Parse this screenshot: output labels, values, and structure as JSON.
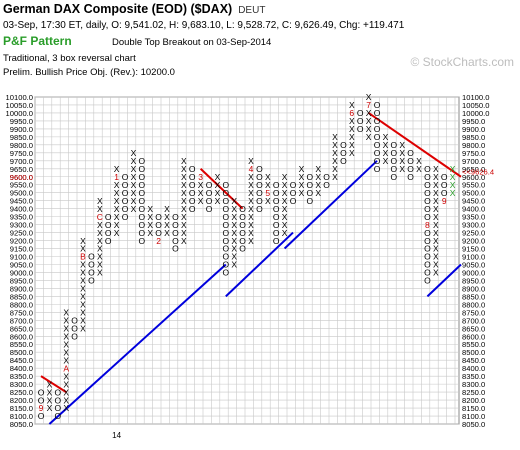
{
  "header": {
    "title": "German DAX Composite (EOD) ($DAX)",
    "exchange": "DEUT",
    "stats": "03-Sep, 17:30 ET, daily, O: 9,541.02, H: 9,683.10, L: 9,528.72, C: 9,626.49, Chg: +119.471",
    "pattern_label": "P&F Pattern",
    "pattern_desc": "Double Top Breakout on 03-Sep-2014",
    "chart_type": "Traditional, 3 box reversal chart",
    "price_objective": "Prelim. Bullish Price Obj. (Rev.): 10200.0"
  },
  "watermark": "© StockCharts.com",
  "chart_data": {
    "type": "point-and-figure",
    "box_size": 50,
    "reversal": 3,
    "ylim": [
      8050,
      10100
    ],
    "grid": true,
    "ticks": [
      "8050.0",
      "8100.0",
      "8150.0",
      "8200.0",
      "8250.0",
      "8300.0",
      "8350.0",
      "8400.0",
      "8450.0",
      "8500.0",
      "8550.0",
      "8600.0",
      "8650.0",
      "8700.0",
      "8750.0",
      "8800.0",
      "8850.0",
      "8900.0",
      "8950.0",
      "9000.0",
      "9050.0",
      "9100.0",
      "9150.0",
      "9200.0",
      "9250.0",
      "9300.0",
      "9350.0",
      "9400.0",
      "9450.0",
      "9500.0",
      "9550.0",
      "9600.0",
      "9650.0",
      "9700.0",
      "9750.0",
      "9800.0",
      "9850.0",
      "9900.0",
      "9950.0",
      "10000.0",
      "10050.0",
      "10100.0"
    ],
    "current_price": 9626.4,
    "current_price_label": "9626.4",
    "current_price_box_label": "9600.0",
    "x_label": "14",
    "columns": [
      {
        "t": "O",
        "lo": 8100,
        "hi": 8250,
        "marks": {
          "8150": "9"
        }
      },
      {
        "t": "X",
        "lo": 8150,
        "hi": 8300
      },
      {
        "t": "O",
        "lo": 8100,
        "hi": 8250
      },
      {
        "t": "X",
        "lo": 8150,
        "hi": 8750,
        "marks": {
          "8400": "A"
        }
      },
      {
        "t": "O",
        "lo": 8600,
        "hi": 8700
      },
      {
        "t": "X",
        "lo": 8650,
        "hi": 9200,
        "marks": {
          "9100": "B"
        }
      },
      {
        "t": "O",
        "lo": 8950,
        "hi": 9100
      },
      {
        "t": "X",
        "lo": 9000,
        "hi": 9450,
        "marks": {
          "9350": "C"
        }
      },
      {
        "t": "O",
        "lo": 9200,
        "hi": 9350
      },
      {
        "t": "X",
        "lo": 9250,
        "hi": 9650,
        "marks": {
          "9600": "1"
        }
      },
      {
        "t": "O",
        "lo": 9350,
        "hi": 9600
      },
      {
        "t": "X",
        "lo": 9400,
        "hi": 9750
      },
      {
        "t": "O",
        "lo": 9200,
        "hi": 9700
      },
      {
        "t": "X",
        "lo": 9250,
        "hi": 9400
      },
      {
        "t": "O",
        "lo": 9200,
        "hi": 9350,
        "marks": {
          "9200": "2"
        }
      },
      {
        "t": "X",
        "lo": 9250,
        "hi": 9400
      },
      {
        "t": "O",
        "lo": 9150,
        "hi": 9350
      },
      {
        "t": "X",
        "lo": 9200,
        "hi": 9700
      },
      {
        "t": "O",
        "lo": 9400,
        "hi": 9650
      },
      {
        "t": "X",
        "lo": 9450,
        "hi": 9600,
        "marks": {
          "9600": "3"
        }
      },
      {
        "t": "O",
        "lo": 9400,
        "hi": 9550
      },
      {
        "t": "X",
        "lo": 9450,
        "hi": 9600
      },
      {
        "t": "O",
        "lo": 9000,
        "hi": 9550
      },
      {
        "t": "X",
        "lo": 9050,
        "hi": 9450
      },
      {
        "t": "O",
        "lo": 9150,
        "hi": 9400
      },
      {
        "t": "X",
        "lo": 9200,
        "hi": 9700,
        "marks": {
          "9650": "4"
        }
      },
      {
        "t": "O",
        "lo": 9400,
        "hi": 9650
      },
      {
        "t": "X",
        "lo": 9450,
        "hi": 9600,
        "marks": {
          "9500": "5"
        }
      },
      {
        "t": "O",
        "lo": 9200,
        "hi": 9550
      },
      {
        "t": "X",
        "lo": 9250,
        "hi": 9600
      },
      {
        "t": "O",
        "lo": 9450,
        "hi": 9550
      },
      {
        "t": "X",
        "lo": 9500,
        "hi": 9650
      },
      {
        "t": "O",
        "lo": 9450,
        "hi": 9600
      },
      {
        "t": "X",
        "lo": 9500,
        "hi": 9650
      },
      {
        "t": "O",
        "lo": 9550,
        "hi": 9600
      },
      {
        "t": "X",
        "lo": 9600,
        "hi": 9850
      },
      {
        "t": "O",
        "lo": 9700,
        "hi": 9800
      },
      {
        "t": "X",
        "lo": 9750,
        "hi": 10050,
        "marks": {
          "10000": "6"
        }
      },
      {
        "t": "O",
        "lo": 9900,
        "hi": 10000
      },
      {
        "t": "X",
        "lo": 9850,
        "hi": 10100,
        "marks": {
          "10050": "7"
        }
      },
      {
        "t": "O",
        "lo": 9650,
        "hi": 10050
      },
      {
        "t": "X",
        "lo": 9700,
        "hi": 9850
      },
      {
        "t": "O",
        "lo": 9600,
        "hi": 9800
      },
      {
        "t": "X",
        "lo": 9650,
        "hi": 9800
      },
      {
        "t": "O",
        "lo": 9600,
        "hi": 9750
      },
      {
        "t": "X",
        "lo": 9650,
        "hi": 9700
      },
      {
        "t": "O",
        "lo": 8950,
        "hi": 9650,
        "marks": {
          "9300": "8"
        }
      },
      {
        "t": "X",
        "lo": 9000,
        "hi": 9650
      },
      {
        "t": "O",
        "lo": 9450,
        "hi": 9600,
        "marks": {
          "9450": "9"
        }
      },
      {
        "t": "X",
        "lo": 9500,
        "hi": 9650
      }
    ],
    "trendlines": [
      {
        "color": "#0000dd",
        "from": [
          1,
          8050
        ],
        "to": [
          22,
          9050
        ]
      },
      {
        "color": "#0000dd",
        "from": [
          22,
          8850
        ],
        "to": [
          30,
          9250
        ]
      },
      {
        "color": "#0000dd",
        "from": [
          29,
          9150
        ],
        "to": [
          40,
          9700
        ]
      },
      {
        "color": "#0000dd",
        "from": [
          46,
          8850
        ],
        "to": [
          50,
          9050
        ]
      },
      {
        "color": "#dd0000",
        "from": [
          0,
          8350
        ],
        "to": [
          3,
          8250
        ]
      },
      {
        "color": "#dd0000",
        "from": [
          19,
          9650
        ],
        "to": [
          24,
          9400
        ]
      },
      {
        "color": "#dd0000",
        "from": [
          39,
          10000
        ],
        "to": [
          50,
          9600
        ]
      }
    ],
    "colors": {
      "x": "#000000",
      "o": "#000000",
      "mark": "#cc0000",
      "last": "#2a9d2a",
      "grid": "#c8c8c8",
      "price": "#cc0000"
    }
  }
}
